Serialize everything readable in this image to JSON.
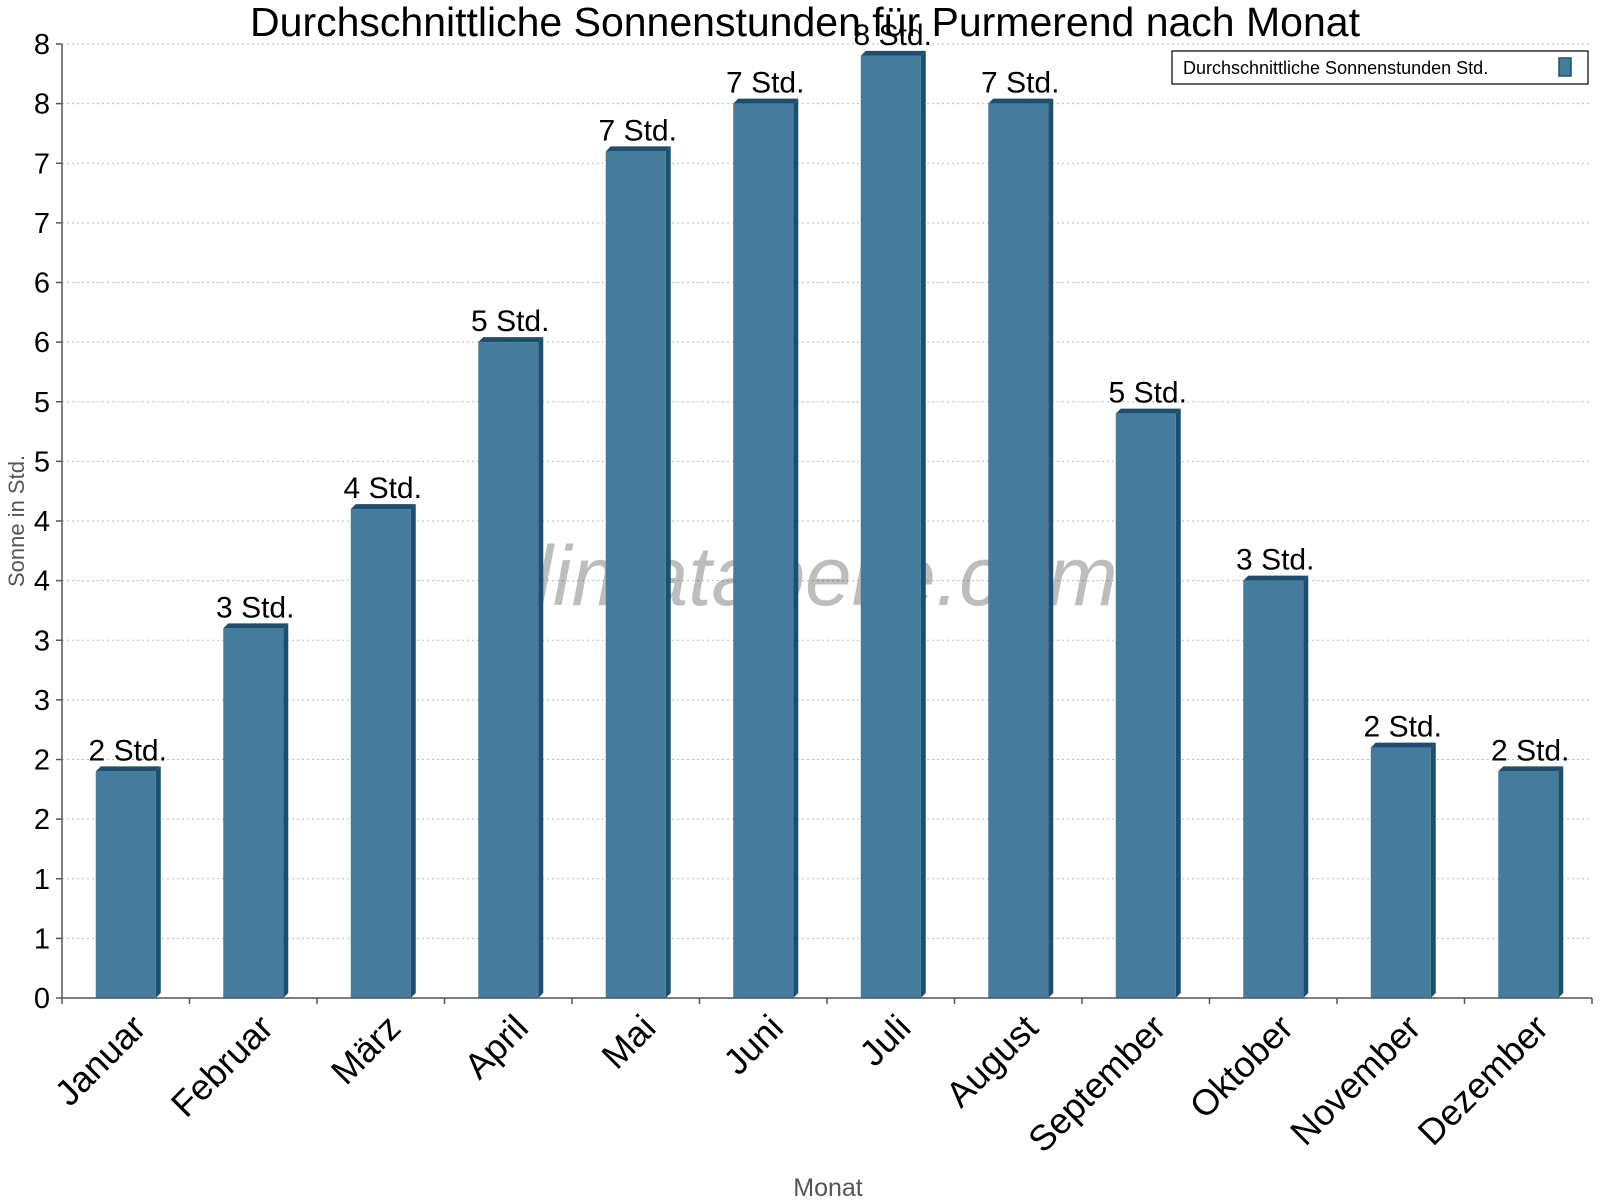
{
  "chart_data": {
    "type": "bar",
    "title": "Durchschnittliche Sonnenstunden für Purmerend nach Monat",
    "xlabel": "Monat",
    "ylabel": "Sonne in Std.",
    "watermark": "klimatabelle.com",
    "categories": [
      "Januar",
      "Februar",
      "März",
      "April",
      "Mai",
      "Juni",
      "Juli",
      "August",
      "September",
      "Oktober",
      "November",
      "Dezember"
    ],
    "series": [
      {
        "name": "Durchschnittliche Sonnenstunden Std.",
        "values": [
          1.9,
          3.1,
          4.1,
          5.5,
          7.1,
          7.5,
          7.9,
          7.5,
          4.9,
          3.5,
          2.1,
          1.9
        ],
        "data_labels": [
          "2 Std.",
          "3 Std.",
          "4 Std.",
          "5 Std.",
          "7 Std.",
          "7 Std.",
          "8 Std.",
          "7 Std.",
          "5 Std.",
          "3 Std.",
          "2 Std.",
          "2 Std."
        ],
        "color": "#457b9d",
        "edge_color": "#1d4e6e"
      }
    ],
    "ylim": [
      0,
      8
    ],
    "yticks": [
      0,
      0.5,
      1,
      1.5,
      2,
      2.5,
      3,
      3.5,
      4,
      4.5,
      5,
      5.5,
      6,
      6.5,
      7,
      7.5,
      8
    ],
    "ytick_labels": [
      "0",
      "1",
      "1",
      "2",
      "2",
      "3",
      "3",
      "4",
      "4",
      "5",
      "5",
      "6",
      "6",
      "7",
      "7",
      "8",
      "8"
    ],
    "grid": true,
    "legend_position": "top-right"
  }
}
